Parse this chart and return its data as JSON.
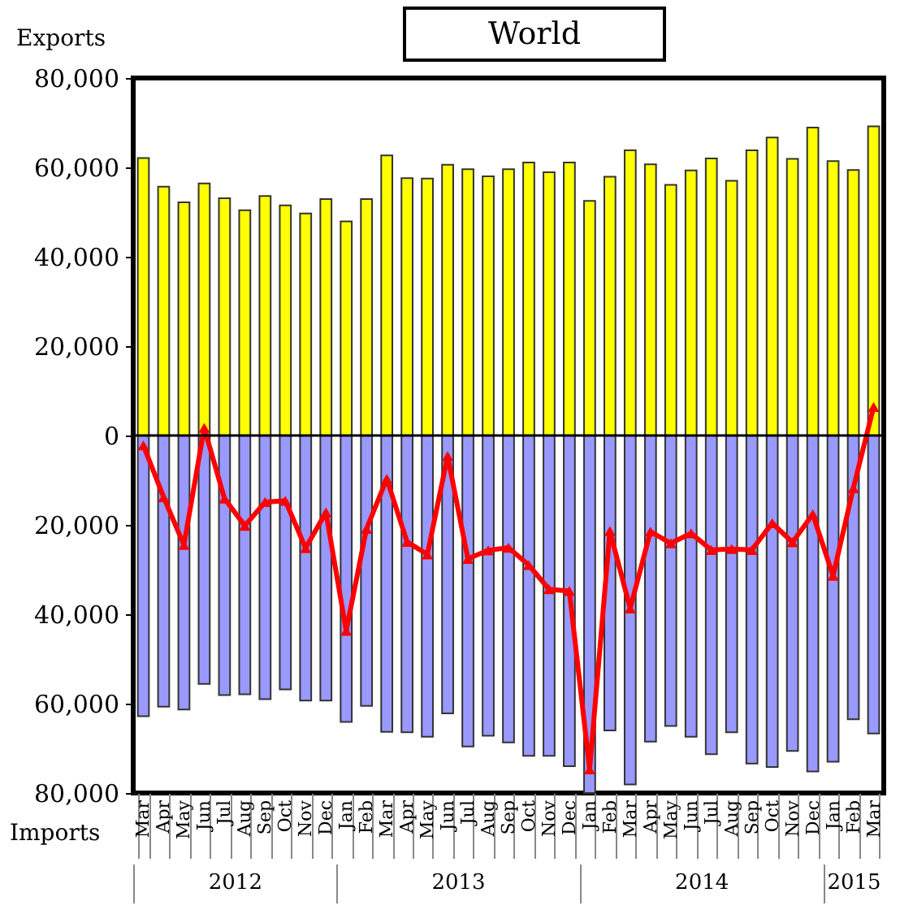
{
  "chart_data": {
    "type": "bar",
    "title": "World",
    "ylabel": "Exports",
    "annotations": [
      "Imports",
      "2012",
      "2013",
      "2014",
      "2015"
    ],
    "stacked": true,
    "categories": [
      "Mar",
      "Apr",
      "May",
      "Jun",
      "Jul",
      "Aug",
      "Sep",
      "Oct",
      "Nov",
      "Dec",
      "Jan",
      "Feb",
      "Mar",
      "Apr",
      "May",
      "Jun",
      "Jul",
      "Aug",
      "Sep",
      "Oct",
      "Nov",
      "Dec",
      "Jan",
      "Feb",
      "Mar",
      "Apr",
      "May",
      "Jun",
      "Jul",
      "Aug",
      "Sep",
      "Oct",
      "Nov",
      "Dec",
      "Jan",
      "Feb",
      "Mar"
    ],
    "series": [
      {
        "color": "#ffff00",
        "values": [
          62100,
          55700,
          52200,
          56400,
          53100,
          50400,
          53600,
          51500,
          49700,
          52900,
          47900,
          52900,
          62700,
          57600,
          57500,
          60600,
          59600,
          58000,
          59600,
          61100,
          58900,
          61100,
          52500,
          57900,
          63800,
          60700,
          56100,
          59300,
          62000,
          57000,
          63800,
          66700,
          61900,
          68900,
          61400,
          59400,
          69200
        ]
      },
      {
        "color": "#9999ff",
        "values": [
          -62800,
          -60700,
          -61300,
          -55600,
          -58100,
          -57900,
          -59000,
          -56800,
          -59300,
          -59300,
          -64100,
          -60500,
          -66300,
          -66400,
          -67400,
          -62200,
          -69600,
          -67200,
          -68700,
          -71700,
          -71700,
          -74000,
          -80000,
          -66000,
          -78100,
          -68500,
          -65000,
          -67400,
          -71300,
          -66400,
          -73400,
          -74200,
          -70600,
          -75200,
          -73000,
          -63500,
          -66700
        ]
      },
      {
        "type": "line",
        "color": "#ff0000",
        "marker": "triangle",
        "line_style": "solid",
        "values": [
          -2200,
          -13800,
          -24500,
          1700,
          -14100,
          -20200,
          -14900,
          -14600,
          -25200,
          -17200,
          -43700,
          -20900,
          -9700,
          -23800,
          -26600,
          -4600,
          -27600,
          -25700,
          -25100,
          -29000,
          -34400,
          -34800,
          -74700,
          -21400,
          -38700,
          -21500,
          -24100,
          -21900,
          -25600,
          -25400,
          -25600,
          -19600,
          -23900,
          -17600,
          -31400,
          -11800,
          6400
        ]
      }
    ],
    "ylim": [
      -80000,
      80000
    ],
    "yticks": [
      {
        "value": -80000,
        "label": "80,000"
      },
      {
        "value": -60000,
        "label": "60,000"
      },
      {
        "value": -40000,
        "label": "40,000"
      },
      {
        "value": -20000,
        "label": "20,000"
      },
      0,
      {
        "value": 20000,
        "label": "20,000"
      },
      {
        "value": 40000,
        "label": "40,000"
      },
      {
        "value": 60000,
        "label": "60,000"
      },
      {
        "value": 80000,
        "label": "80,000"
      }
    ]
  }
}
